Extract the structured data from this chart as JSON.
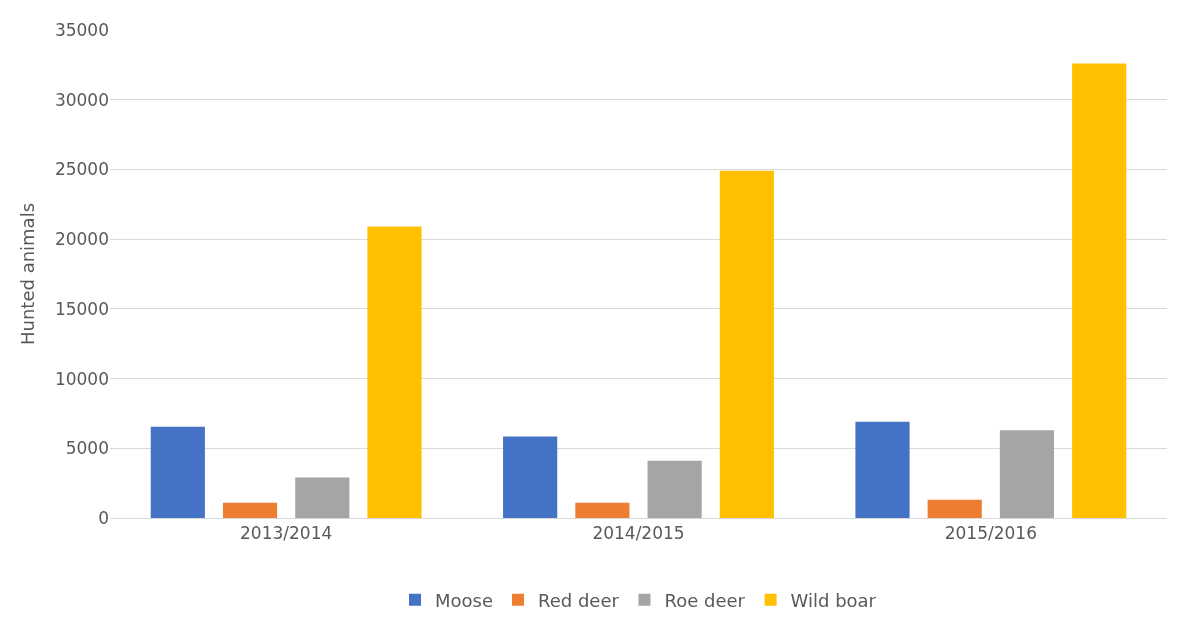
{
  "chart_data": {
    "type": "bar",
    "ylabel": "Hunted animals",
    "categories": [
      "2013/2014",
      "2014/2015",
      "2015/2016"
    ],
    "series": [
      {
        "name": "Moose",
        "color": "#4472c4",
        "values": [
          6550,
          5850,
          6900
        ]
      },
      {
        "name": "Red deer",
        "color": "#ed7d31",
        "values": [
          1100,
          1100,
          1300
        ]
      },
      {
        "name": "Roe deer",
        "color": "#a5a5a5",
        "values": [
          2900,
          4100,
          6300
        ]
      },
      {
        "name": "Wild boar",
        "color": "#ffc000",
        "values": [
          20900,
          24900,
          32600
        ]
      }
    ],
    "ylim": [
      0,
      35000
    ],
    "yticks": [
      0,
      5000,
      10000,
      15000,
      20000,
      25000,
      30000,
      35000
    ],
    "grid": "y",
    "legend": "bottom"
  }
}
